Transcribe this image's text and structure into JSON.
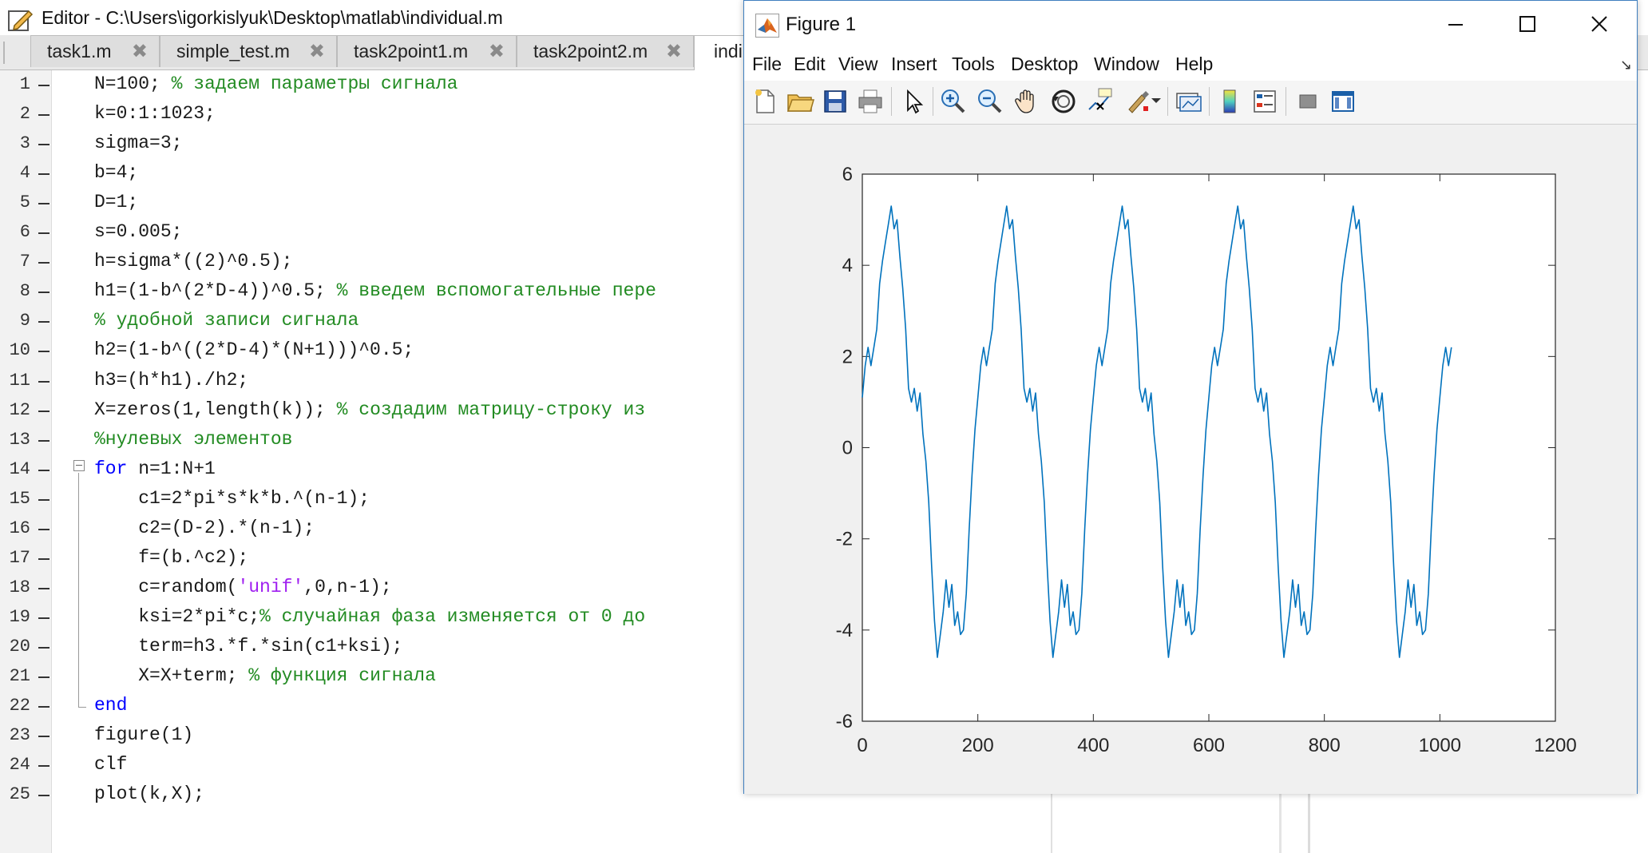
{
  "editor": {
    "title": "Editor - C:\\Users\\igorkislyuk\\Desktop\\matlab\\individual.m",
    "tabs": [
      {
        "label": "task1.m",
        "close": "✖"
      },
      {
        "label": "simple_test.m",
        "close": "✖"
      },
      {
        "label": "task2point1.m",
        "close": "✖"
      },
      {
        "label": "task2point2.m",
        "close": "✖"
      },
      {
        "label": "indi",
        "close": ""
      }
    ],
    "line_numbers": [
      "1",
      "2",
      "3",
      "4",
      "5",
      "6",
      "7",
      "8",
      "9",
      "10",
      "11",
      "12",
      "13",
      "14",
      "15",
      "16",
      "17",
      "18",
      "19",
      "20",
      "21",
      "22",
      "23",
      "24",
      "25"
    ],
    "code": [
      {
        "indent": "",
        "parts": [
          {
            "t": "N=100; ",
            "c": "code"
          },
          {
            "t": "% задаем параметры сигнала",
            "c": "comment"
          }
        ]
      },
      {
        "indent": "",
        "parts": [
          {
            "t": "k=0:1:1023;",
            "c": "code"
          }
        ]
      },
      {
        "indent": "",
        "parts": [
          {
            "t": "sigma=3;",
            "c": "code"
          }
        ]
      },
      {
        "indent": "",
        "parts": [
          {
            "t": "b=4;",
            "c": "code"
          }
        ]
      },
      {
        "indent": "",
        "parts": [
          {
            "t": "D=1;",
            "c": "code"
          }
        ]
      },
      {
        "indent": "",
        "parts": [
          {
            "t": "s=0.005;",
            "c": "code"
          }
        ]
      },
      {
        "indent": "",
        "parts": [
          {
            "t": "h=sigma*((2)^0.5);",
            "c": "code"
          }
        ]
      },
      {
        "indent": "",
        "parts": [
          {
            "t": "h1=(1-b^(2*D-4))^0.5; ",
            "c": "code"
          },
          {
            "t": "% введем вспомогательные пере",
            "c": "comment"
          }
        ]
      },
      {
        "indent": "",
        "parts": [
          {
            "t": "% удобной записи сигнала",
            "c": "comment"
          }
        ]
      },
      {
        "indent": "",
        "parts": [
          {
            "t": "h2=(1-b^((2*D-4)*(N+1)))^0.5;",
            "c": "code"
          }
        ]
      },
      {
        "indent": "",
        "parts": [
          {
            "t": "h3=(h*h1)./h2;",
            "c": "code"
          }
        ]
      },
      {
        "indent": "",
        "parts": [
          {
            "t": "X=zeros(1,length(k)); ",
            "c": "code"
          },
          {
            "t": "% создадим матрицу-строку из",
            "c": "comment"
          }
        ]
      },
      {
        "indent": "",
        "parts": [
          {
            "t": "%нулевых элементов",
            "c": "comment"
          }
        ]
      },
      {
        "indent": "",
        "parts": [
          {
            "t": "for",
            "c": "keyword"
          },
          {
            "t": " n=1:N+1",
            "c": "code"
          }
        ]
      },
      {
        "indent": "    ",
        "parts": [
          {
            "t": "c1=2*pi*s*k*b.^(n-1);",
            "c": "code"
          }
        ]
      },
      {
        "indent": "    ",
        "parts": [
          {
            "t": "c2=(D-2).*(n-1);",
            "c": "code"
          }
        ]
      },
      {
        "indent": "    ",
        "parts": [
          {
            "t": "f=(b.^c2);",
            "c": "code"
          }
        ]
      },
      {
        "indent": "    ",
        "parts": [
          {
            "t": "c=random(",
            "c": "code"
          },
          {
            "t": "'unif'",
            "c": "string"
          },
          {
            "t": ",0,n-1);",
            "c": "code"
          }
        ]
      },
      {
        "indent": "    ",
        "parts": [
          {
            "t": "ksi=2*pi*c;",
            "c": "code"
          },
          {
            "t": "% случайная фаза изменяется от 0 до",
            "c": "comment"
          }
        ]
      },
      {
        "indent": "    ",
        "parts": [
          {
            "t": "term=h3.*f.*sin(c1+ksi);",
            "c": "code"
          }
        ]
      },
      {
        "indent": "    ",
        "parts": [
          {
            "t": "X=X+term; ",
            "c": "code"
          },
          {
            "t": "% функция сигнала",
            "c": "comment"
          }
        ]
      },
      {
        "indent": "",
        "parts": [
          {
            "t": "end",
            "c": "keyword"
          }
        ]
      },
      {
        "indent": "",
        "parts": [
          {
            "t": "figure(1)",
            "c": "code"
          }
        ]
      },
      {
        "indent": "",
        "parts": [
          {
            "t": "clf",
            "c": "code"
          }
        ]
      },
      {
        "indent": "",
        "parts": [
          {
            "t": "plot(k,X);",
            "c": "code"
          }
        ]
      }
    ]
  },
  "figure": {
    "title": "Figure 1",
    "menu": [
      "File",
      "Edit",
      "View",
      "Insert",
      "Tools",
      "Desktop",
      "Window",
      "Help"
    ],
    "menu_arrow": "↘",
    "toolbar_icons": [
      "new-figure-icon",
      "open-file-icon",
      "save-icon",
      "print-icon",
      "edit-plot-icon",
      "zoom-in-icon",
      "zoom-out-icon",
      "pan-icon",
      "rotate-3d-icon",
      "data-cursor-icon",
      "brush-icon",
      "link-plot-icon",
      "colorbar-icon",
      "legend-icon",
      "hide-plot-tools-icon",
      "show-plot-tools-icon"
    ]
  },
  "colors": {
    "line": "#0072bd",
    "comment": "#228b22",
    "keyword": "#0000ff",
    "string": "#a020f0",
    "figure_border": "#3f7fbf"
  },
  "chart_data": {
    "type": "line",
    "title": "",
    "xlabel": "",
    "ylabel": "",
    "xlim": [
      0,
      1200
    ],
    "ylim": [
      -6,
      6
    ],
    "xticks": [
      0,
      200,
      400,
      600,
      800,
      1000,
      1200
    ],
    "yticks": [
      6,
      4,
      2,
      0,
      -2,
      -4,
      -6
    ],
    "grid": false,
    "series": [
      {
        "period": 200,
        "x_end": 1023,
        "x": [
          0,
          5,
          10,
          15,
          20,
          25,
          30,
          35,
          40,
          45,
          50,
          55,
          60,
          65,
          70,
          75,
          80,
          85,
          90,
          95,
          100,
          105,
          110,
          115,
          120,
          125,
          130,
          135,
          140,
          145,
          150,
          155,
          160,
          165,
          170,
          175,
          180,
          185,
          190,
          195
        ],
        "y": [
          1.1,
          1.8,
          2.2,
          1.8,
          2.2,
          2.6,
          3.6,
          4.1,
          4.5,
          4.9,
          5.3,
          4.8,
          5.0,
          4.2,
          3.5,
          2.6,
          1.3,
          1.0,
          1.3,
          0.8,
          1.2,
          0.3,
          -0.3,
          -1.2,
          -2.6,
          -3.8,
          -4.6,
          -4.1,
          -3.6,
          -2.9,
          -3.5,
          -3.0,
          -3.9,
          -3.6,
          -4.1,
          -4.0,
          -3.2,
          -1.8,
          -0.6,
          0.4
        ]
      }
    ]
  }
}
